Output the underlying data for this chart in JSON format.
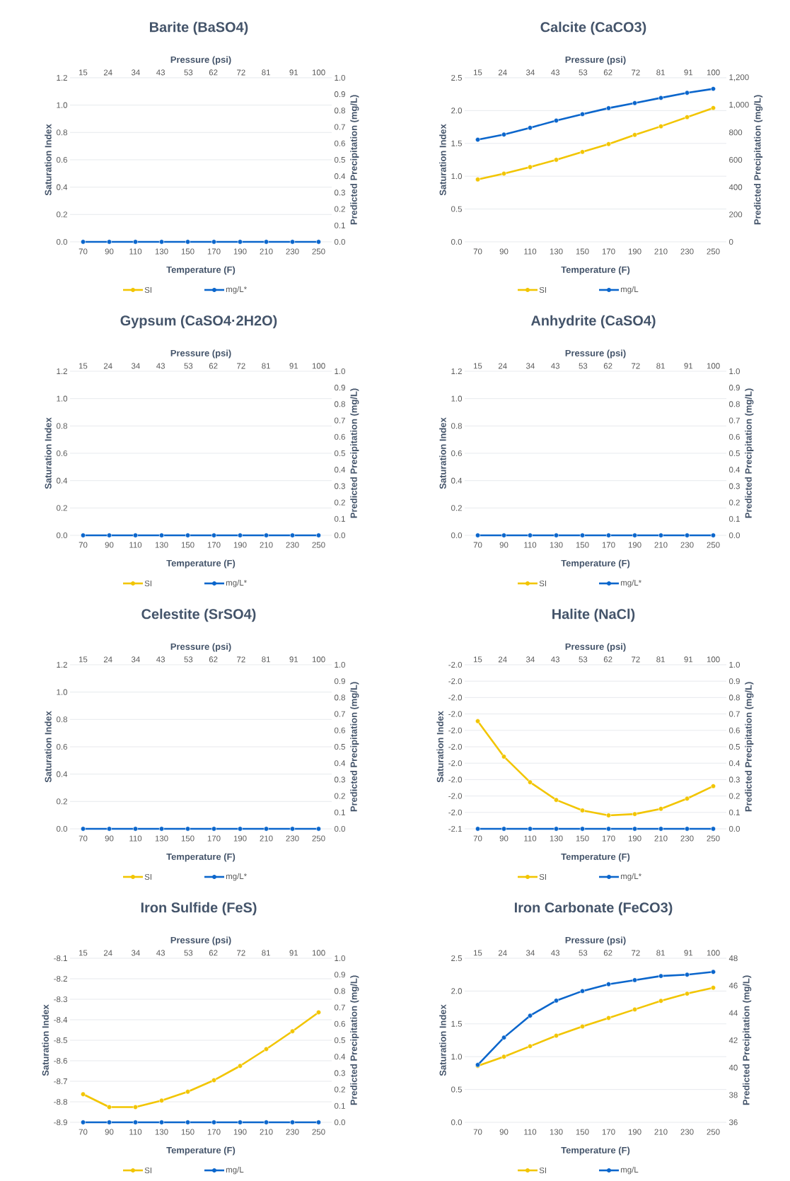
{
  "chart_data": [
    {
      "type": "line",
      "title": "Barite (BaSO4)",
      "x2label": "Pressure (psi)",
      "xlabel": "Temperature (F)",
      "ylabel": "Saturation Index",
      "y2label": "Predicted Precipitation (mg/L)",
      "categories": [
        "70",
        "90",
        "110",
        "130",
        "150",
        "170",
        "190",
        "210",
        "230",
        "250"
      ],
      "x2lim": [
        10.3,
        104.7
      ],
      "x2ticks": [
        15,
        24,
        34,
        43,
        53,
        62,
        72,
        81,
        91,
        100
      ],
      "ylim": [
        0,
        1.2
      ],
      "yticks": [
        {
          "value": 0,
          "label": "0.0"
        },
        0.2,
        0.4,
        0.6,
        0.8,
        {
          "value": 1,
          "label": "1.0"
        },
        1.2
      ],
      "y2lim": [
        0,
        1
      ],
      "y2ticks": [
        {
          "value": 0,
          "label": "0.0"
        },
        0.1,
        0.2,
        0.3,
        0.4,
        0.5,
        0.6,
        0.7,
        0.8,
        0.9,
        {
          "value": 1,
          "label": "1.0"
        }
      ],
      "series": [
        {
          "name": "SI",
          "color": "#f2c500",
          "values": [
            null,
            null,
            null,
            null,
            null,
            null,
            null,
            null,
            null,
            null
          ]
        },
        {
          "name": "mg/L*",
          "color": "#0b66cc",
          "axis": "y2",
          "values": [
            0,
            0,
            0,
            0,
            0,
            0,
            0,
            0,
            0,
            0
          ]
        }
      ],
      "grid": "y",
      "legend": "bottom",
      "marker": "circle",
      "line_style": "solid"
    },
    {
      "type": "line",
      "title": "Calcite (CaCO3)",
      "x2label": "Pressure (psi)",
      "xlabel": "Temperature (F)",
      "ylabel": "Saturation Index",
      "y2label": "Predicted Precipitation (mg/L)",
      "categories": [
        "70",
        "90",
        "110",
        "130",
        "150",
        "170",
        "190",
        "210",
        "230",
        "250"
      ],
      "x2lim": [
        10.3,
        104.7
      ],
      "x2ticks": [
        15,
        24,
        34,
        43,
        53,
        62,
        72,
        81,
        91,
        100
      ],
      "ylim": [
        0,
        2.5
      ],
      "yticks": [
        {
          "value": 0,
          "label": "0.0"
        },
        0.5,
        {
          "value": 1,
          "label": "1.0"
        },
        1.5,
        {
          "value": 2,
          "label": "2.0"
        },
        2.5
      ],
      "y2lim": [
        0,
        1200
      ],
      "y2ticks": [
        0,
        200,
        400,
        600,
        800,
        {
          "value": 1000,
          "label": "1,000"
        },
        {
          "value": 1200,
          "label": "1,200"
        }
      ],
      "series": [
        {
          "name": "SI",
          "color": "#f2c500",
          "values": [
            0.95,
            1.04,
            1.14,
            1.25,
            1.37,
            1.49,
            1.63,
            1.76,
            1.9,
            2.04
          ]
        },
        {
          "name": "mg/L",
          "color": "#0b66cc",
          "axis": "y2",
          "values": [
            747,
            785,
            834,
            887,
            934,
            978,
            1015,
            1053,
            1090,
            1119
          ]
        }
      ],
      "grid": "y",
      "legend": "bottom",
      "marker": "circle",
      "line_style": "solid"
    },
    {
      "type": "line",
      "title": "Gypsum (CaSO4·2H2O)",
      "x2label": "Pressure (psi)",
      "xlabel": "Temperature (F)",
      "ylabel": "Saturation Index",
      "y2label": "Predicted Precipitation (mg/L)",
      "categories": [
        "70",
        "90",
        "110",
        "130",
        "150",
        "170",
        "190",
        "210",
        "230",
        "250"
      ],
      "x2lim": [
        10.3,
        104.7
      ],
      "x2ticks": [
        15,
        24,
        34,
        43,
        53,
        62,
        72,
        81,
        91,
        100
      ],
      "ylim": [
        0,
        1.2
      ],
      "yticks": [
        {
          "value": 0,
          "label": "0.0"
        },
        0.2,
        0.4,
        0.6,
        0.8,
        {
          "value": 1,
          "label": "1.0"
        },
        1.2
      ],
      "y2lim": [
        0,
        1
      ],
      "y2ticks": [
        {
          "value": 0,
          "label": "0.0"
        },
        0.1,
        0.2,
        0.3,
        0.4,
        0.5,
        0.6,
        0.7,
        0.8,
        0.9,
        {
          "value": 1,
          "label": "1.0"
        }
      ],
      "series": [
        {
          "name": "SI",
          "color": "#f2c500",
          "values": [
            null,
            null,
            null,
            null,
            null,
            null,
            null,
            null,
            null,
            null
          ]
        },
        {
          "name": "mg/L*",
          "color": "#0b66cc",
          "axis": "y2",
          "values": [
            0,
            0,
            0,
            0,
            0,
            0,
            0,
            0,
            0,
            0
          ]
        }
      ],
      "grid": "y",
      "legend": "bottom",
      "marker": "circle",
      "line_style": "solid"
    },
    {
      "type": "line",
      "title": "Anhydrite (CaSO4)",
      "x2label": "Pressure (psi)",
      "xlabel": "Temperature (F)",
      "ylabel": "Saturation Index",
      "y2label": "Predicted Precipitation (mg/L)",
      "categories": [
        "70",
        "90",
        "110",
        "130",
        "150",
        "170",
        "190",
        "210",
        "230",
        "250"
      ],
      "x2lim": [
        10.3,
        104.7
      ],
      "x2ticks": [
        15,
        24,
        34,
        43,
        53,
        62,
        72,
        81,
        91,
        100
      ],
      "ylim": [
        0,
        1.2
      ],
      "yticks": [
        {
          "value": 0,
          "label": "0.0"
        },
        0.2,
        0.4,
        0.6,
        0.8,
        {
          "value": 1,
          "label": "1.0"
        },
        1.2
      ],
      "y2lim": [
        0,
        1
      ],
      "y2ticks": [
        {
          "value": 0,
          "label": "0.0"
        },
        0.1,
        0.2,
        0.3,
        0.4,
        0.5,
        0.6,
        0.7,
        0.8,
        0.9,
        {
          "value": 1,
          "label": "1.0"
        }
      ],
      "series": [
        {
          "name": "SI",
          "color": "#f2c500",
          "values": [
            null,
            null,
            null,
            null,
            null,
            null,
            null,
            null,
            null,
            null
          ]
        },
        {
          "name": "mg/L*",
          "color": "#0b66cc",
          "axis": "y2",
          "values": [
            0,
            0,
            0,
            0,
            0,
            0,
            0,
            0,
            0,
            0
          ]
        }
      ],
      "grid": "y",
      "legend": "bottom",
      "marker": "circle",
      "line_style": "solid"
    },
    {
      "type": "line",
      "title": "Celestite (SrSO4)",
      "x2label": "Pressure (psi)",
      "xlabel": "Temperature (F)",
      "ylabel": "Saturation Index",
      "y2label": "Predicted Precipitation (mg/L)",
      "categories": [
        "70",
        "90",
        "110",
        "130",
        "150",
        "170",
        "190",
        "210",
        "230",
        "250"
      ],
      "x2lim": [
        10.3,
        104.7
      ],
      "x2ticks": [
        15,
        24,
        34,
        43,
        53,
        62,
        72,
        81,
        91,
        100
      ],
      "ylim": [
        0,
        1.2
      ],
      "yticks": [
        {
          "value": 0,
          "label": "0.0"
        },
        0.2,
        0.4,
        0.6,
        0.8,
        {
          "value": 1,
          "label": "1.0"
        },
        1.2
      ],
      "y2lim": [
        0,
        1
      ],
      "y2ticks": [
        {
          "value": 0,
          "label": "0.0"
        },
        0.1,
        0.2,
        0.3,
        0.4,
        0.5,
        0.6,
        0.7,
        0.8,
        0.9,
        {
          "value": 1,
          "label": "1.0"
        }
      ],
      "series": [
        {
          "name": "SI",
          "color": "#f2c500",
          "values": [
            null,
            null,
            null,
            null,
            null,
            null,
            null,
            null,
            null,
            null
          ]
        },
        {
          "name": "mg/L*",
          "color": "#0b66cc",
          "axis": "y2",
          "values": [
            0,
            0,
            0,
            0,
            0,
            0,
            0,
            0,
            0,
            0
          ]
        }
      ],
      "grid": "y",
      "legend": "bottom",
      "marker": "circle",
      "line_style": "solid"
    },
    {
      "type": "line",
      "title": "Halite (NaCl)",
      "x2label": "Pressure (psi)",
      "xlabel": "Temperature (F)",
      "ylabel": "Saturation Index",
      "y2label": "Predicted Precipitation (mg/L)",
      "categories": [
        "70",
        "90",
        "110",
        "130",
        "150",
        "170",
        "190",
        "210",
        "230",
        "250"
      ],
      "x2lim": [
        10.3,
        104.7
      ],
      "x2ticks": [
        15,
        24,
        34,
        43,
        53,
        62,
        72,
        81,
        91,
        100
      ],
      "ylim": [
        -2.05,
        -2.0
      ],
      "yticks": [
        {
          "value": -2.05,
          "label": "-2.1"
        },
        {
          "value": -2.045,
          "label": "-2.0"
        },
        {
          "value": -2.04,
          "label": "-2.0"
        },
        {
          "value": -2.035,
          "label": "-2.0"
        },
        {
          "value": -2.03,
          "label": "-2.0"
        },
        {
          "value": -2.025,
          "label": "-2.0"
        },
        {
          "value": -2.02,
          "label": "-2.0"
        },
        {
          "value": -2.015,
          "label": "-2.0"
        },
        {
          "value": -2.01,
          "label": "-2.0"
        },
        {
          "value": -2.005,
          "label": "-2.0"
        },
        {
          "value": -2.0,
          "label": "-2.0"
        }
      ],
      "y2lim": [
        0,
        1
      ],
      "y2ticks": [
        {
          "value": 0,
          "label": "0.0"
        },
        0.1,
        0.2,
        0.3,
        0.4,
        0.5,
        0.6,
        0.7,
        0.8,
        0.9,
        {
          "value": 1,
          "label": "1.0"
        }
      ],
      "series": [
        {
          "name": "SI",
          "color": "#f2c500",
          "values": [
            -2.0172,
            -2.028,
            -2.0358,
            -2.0412,
            -2.0444,
            -2.0459,
            -2.0455,
            -2.0439,
            -2.0408,
            -2.037
          ]
        },
        {
          "name": "mg/L*",
          "color": "#0b66cc",
          "axis": "y2",
          "values": [
            0,
            0,
            0,
            0,
            0,
            0,
            0,
            0,
            0,
            0
          ]
        }
      ],
      "grid": "y",
      "legend": "bottom",
      "marker": "circle",
      "line_style": "solid"
    },
    {
      "type": "line",
      "title": "Iron Sulfide (FeS)",
      "x2label": "Pressure (psi)",
      "xlabel": "Temperature (F)",
      "ylabel": "Saturation Index",
      "y2label": "Predicted Precipitation (mg/L)",
      "categories": [
        "70",
        "90",
        "110",
        "130",
        "150",
        "170",
        "190",
        "210",
        "230",
        "250"
      ],
      "x2lim": [
        10.3,
        104.7
      ],
      "x2ticks": [
        15,
        24,
        34,
        43,
        53,
        62,
        72,
        81,
        91,
        100
      ],
      "ylim": [
        -8.9,
        -8.1
      ],
      "yticks": [
        -8.9,
        -8.8,
        -8.7,
        -8.6,
        -8.5,
        -8.4,
        -8.3,
        -8.2,
        -8.1
      ],
      "y2lim": [
        0,
        1
      ],
      "y2ticks": [
        {
          "value": 0,
          "label": "0.0"
        },
        0.1,
        0.2,
        0.3,
        0.4,
        0.5,
        0.6,
        0.7,
        0.8,
        0.9,
        {
          "value": 1,
          "label": "1.0"
        }
      ],
      "series": [
        {
          "name": "SI",
          "color": "#f2c500",
          "values": [
            -8.763,
            -8.826,
            -8.826,
            -8.794,
            -8.751,
            -8.695,
            -8.625,
            -8.543,
            -8.456,
            -8.364
          ]
        },
        {
          "name": "mg/L",
          "color": "#0b66cc",
          "axis": "y2",
          "values": [
            0,
            0,
            0,
            0,
            0,
            0,
            0,
            0,
            0,
            0
          ]
        }
      ],
      "grid": "y",
      "legend": "bottom",
      "marker": "circle",
      "line_style": "solid"
    },
    {
      "type": "line",
      "title": "Iron Carbonate (FeCO3)",
      "x2label": "Pressure (psi)",
      "xlabel": "Temperature (F)",
      "ylabel": "Saturation Index",
      "y2label": "Predicted Precipitation (mg/L)",
      "categories": [
        "70",
        "90",
        "110",
        "130",
        "150",
        "170",
        "190",
        "210",
        "230",
        "250"
      ],
      "x2lim": [
        10.3,
        104.7
      ],
      "x2ticks": [
        15,
        24,
        34,
        43,
        53,
        62,
        72,
        81,
        91,
        100
      ],
      "ylim": [
        0,
        2.5
      ],
      "yticks": [
        {
          "value": 0,
          "label": "0.0"
        },
        0.5,
        {
          "value": 1,
          "label": "1.0"
        },
        1.5,
        {
          "value": 2,
          "label": "2.0"
        },
        2.5
      ],
      "y2lim": [
        36,
        48
      ],
      "y2ticks": [
        36,
        38,
        40,
        42,
        44,
        46,
        48
      ],
      "series": [
        {
          "name": "SI",
          "color": "#f2c500",
          "values": [
            0.86,
            1.0,
            1.16,
            1.32,
            1.46,
            1.59,
            1.72,
            1.85,
            1.96,
            2.05
          ]
        },
        {
          "name": "mg/L",
          "color": "#0b66cc",
          "axis": "y2",
          "values": [
            40.2,
            42.2,
            43.8,
            44.9,
            45.6,
            46.1,
            46.4,
            46.7,
            46.8,
            47.0
          ]
        }
      ],
      "grid": "y",
      "legend": "bottom",
      "marker": "circle",
      "line_style": "solid"
    }
  ]
}
